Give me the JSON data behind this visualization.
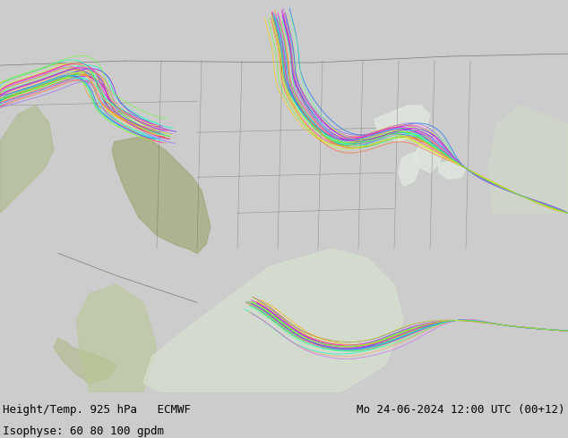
{
  "title_left": "Height/Temp. 925 hPa   ECMWF",
  "title_right": "Mo 24-06-2024 12:00 UTC (00+12)",
  "subtitle_left": "Isophyse: 60 80 100 gpdm",
  "map_bg_color": "#b8e090",
  "terrain_light": "#c8eeaa",
  "terrain_dark": "#8aaa70",
  "ocean_color": "#e8e8e8",
  "border_color": "#555555",
  "label_color": "#000000",
  "label_fontsize": 9,
  "fig_width": 6.34,
  "fig_height": 4.9,
  "dpi": 100,
  "text_bg_color": "#cccccc"
}
